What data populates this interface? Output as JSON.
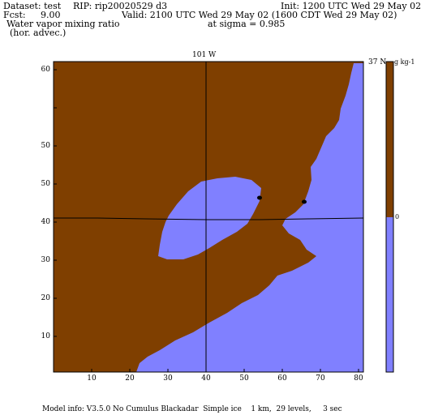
{
  "header": {
    "dataset": "Dataset: test",
    "rip": "RIP: rip20020529 d3",
    "init": "Init: 1200 UTC Wed 29 May 02",
    "fcst_label": "Fcst:",
    "fcst_value": "9.00",
    "valid": "Valid: 2100 UTC Wed 29 May 02 (1600 CDT Wed 29 May 02)",
    "field_name": "Water vapor mixing ratio",
    "field_desc": "(hor. advec.)",
    "level": "at sigma = 0.985"
  },
  "map": {
    "longitude_label": "101 W",
    "latitude_label": "37 N",
    "x_ticks": [
      "10",
      "20",
      "30",
      "40",
      "50",
      "60",
      "70",
      "80"
    ],
    "y_ticks": [
      "60",
      "50",
      "40",
      "30",
      "20",
      "10"
    ],
    "colors": {
      "positive": "#7f3f00",
      "negative": "#8080ff"
    }
  },
  "colorbar": {
    "unit": "g kg-1",
    "zero_label": "0"
  },
  "footer": {
    "model_info": "Model info: V3.5.0 No Cumulus Blackadar  Simple ice    1 km,  29 levels,     3 sec"
  }
}
